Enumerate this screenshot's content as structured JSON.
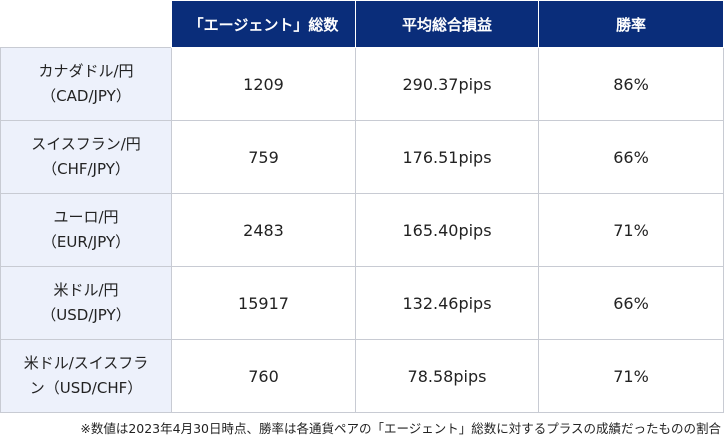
{
  "table": {
    "headers": [
      "",
      "「エージェント」総数",
      "平均総合損益",
      "勝率"
    ],
    "rows": [
      {
        "pair_name": "カナダドル/円",
        "pair_code": "（CAD/JPY）",
        "agents": "1209",
        "avg_pl": "290.37pips",
        "win_rate": "86%"
      },
      {
        "pair_name": "スイスフラン/円",
        "pair_code": "（CHF/JPY）",
        "agents": "759",
        "avg_pl": "176.51pips",
        "win_rate": "66%"
      },
      {
        "pair_name": "ユーロ/円",
        "pair_code": "（EUR/JPY）",
        "agents": "2483",
        "avg_pl": "165.40pips",
        "win_rate": "71%"
      },
      {
        "pair_name": "米ドル/円",
        "pair_code": "（USD/JPY）",
        "agents": "15917",
        "avg_pl": "132.46pips",
        "win_rate": "66%"
      },
      {
        "pair_name": "米ドル/スイスフラ",
        "pair_code": "ン（USD/CHF）",
        "agents": "760",
        "avg_pl": "78.58pips",
        "win_rate": "71%"
      }
    ]
  },
  "footnote": "※数値は2023年4月30日時点、勝率は各通貨ペアの「エージェント」総数に対するプラスの成績だったものの割合",
  "colors": {
    "header_bg": "#0a2d7a",
    "header_text": "#ffffff",
    "row_header_bg": "#edf1fb",
    "border": "#c8cbd3"
  }
}
